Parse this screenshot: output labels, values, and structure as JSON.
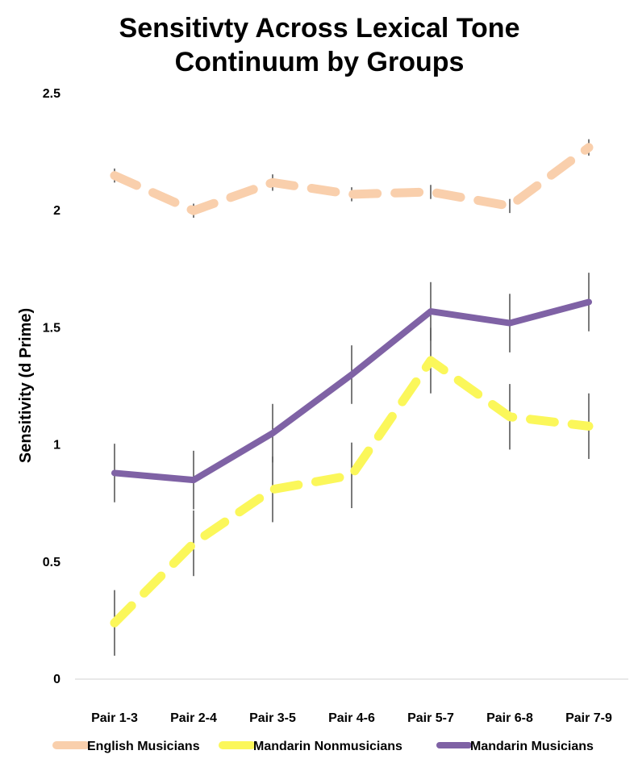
{
  "chart_data": {
    "type": "line",
    "title_lines": [
      "Sensitivty Across Lexical Tone",
      "Continuum by Groups"
    ],
    "xlabel": "",
    "ylabel": "Sensitivity (d Prime)",
    "ylim": [
      0,
      2.5
    ],
    "yticks": [
      "0",
      "0.5",
      "1",
      "1.5",
      "2",
      "2.5"
    ],
    "grid": false,
    "legend_position": "bottom",
    "categories": [
      "Pair 1-3",
      "Pair 2-4",
      "Pair 3-5",
      "Pair 4-6",
      "Pair 5-7",
      "Pair 6-8",
      "Pair 7-9"
    ],
    "series": [
      {
        "name": "English Musicians",
        "color": "#f9cfac",
        "dashed": true,
        "values": [
          2.15,
          2.0,
          2.12,
          2.07,
          2.08,
          2.02,
          2.27
        ],
        "errors": [
          0.03,
          0.03,
          0.035,
          0.03,
          0.03,
          0.03,
          0.035
        ]
      },
      {
        "name": "Mandarin Nonmusicians",
        "color": "#fbf75a",
        "dashed": true,
        "values": [
          0.24,
          0.58,
          0.81,
          0.87,
          1.36,
          1.12,
          1.08
        ],
        "errors": [
          0.14,
          0.14,
          0.14,
          0.14,
          0.14,
          0.14,
          0.14
        ]
      },
      {
        "name": "Mandarin Musicians",
        "color": "#7f62a5",
        "dashed": false,
        "values": [
          0.88,
          0.85,
          1.05,
          1.3,
          1.57,
          1.52,
          1.61
        ],
        "errors": [
          0.125,
          0.125,
          0.125,
          0.125,
          0.125,
          0.125,
          0.125
        ]
      }
    ]
  }
}
